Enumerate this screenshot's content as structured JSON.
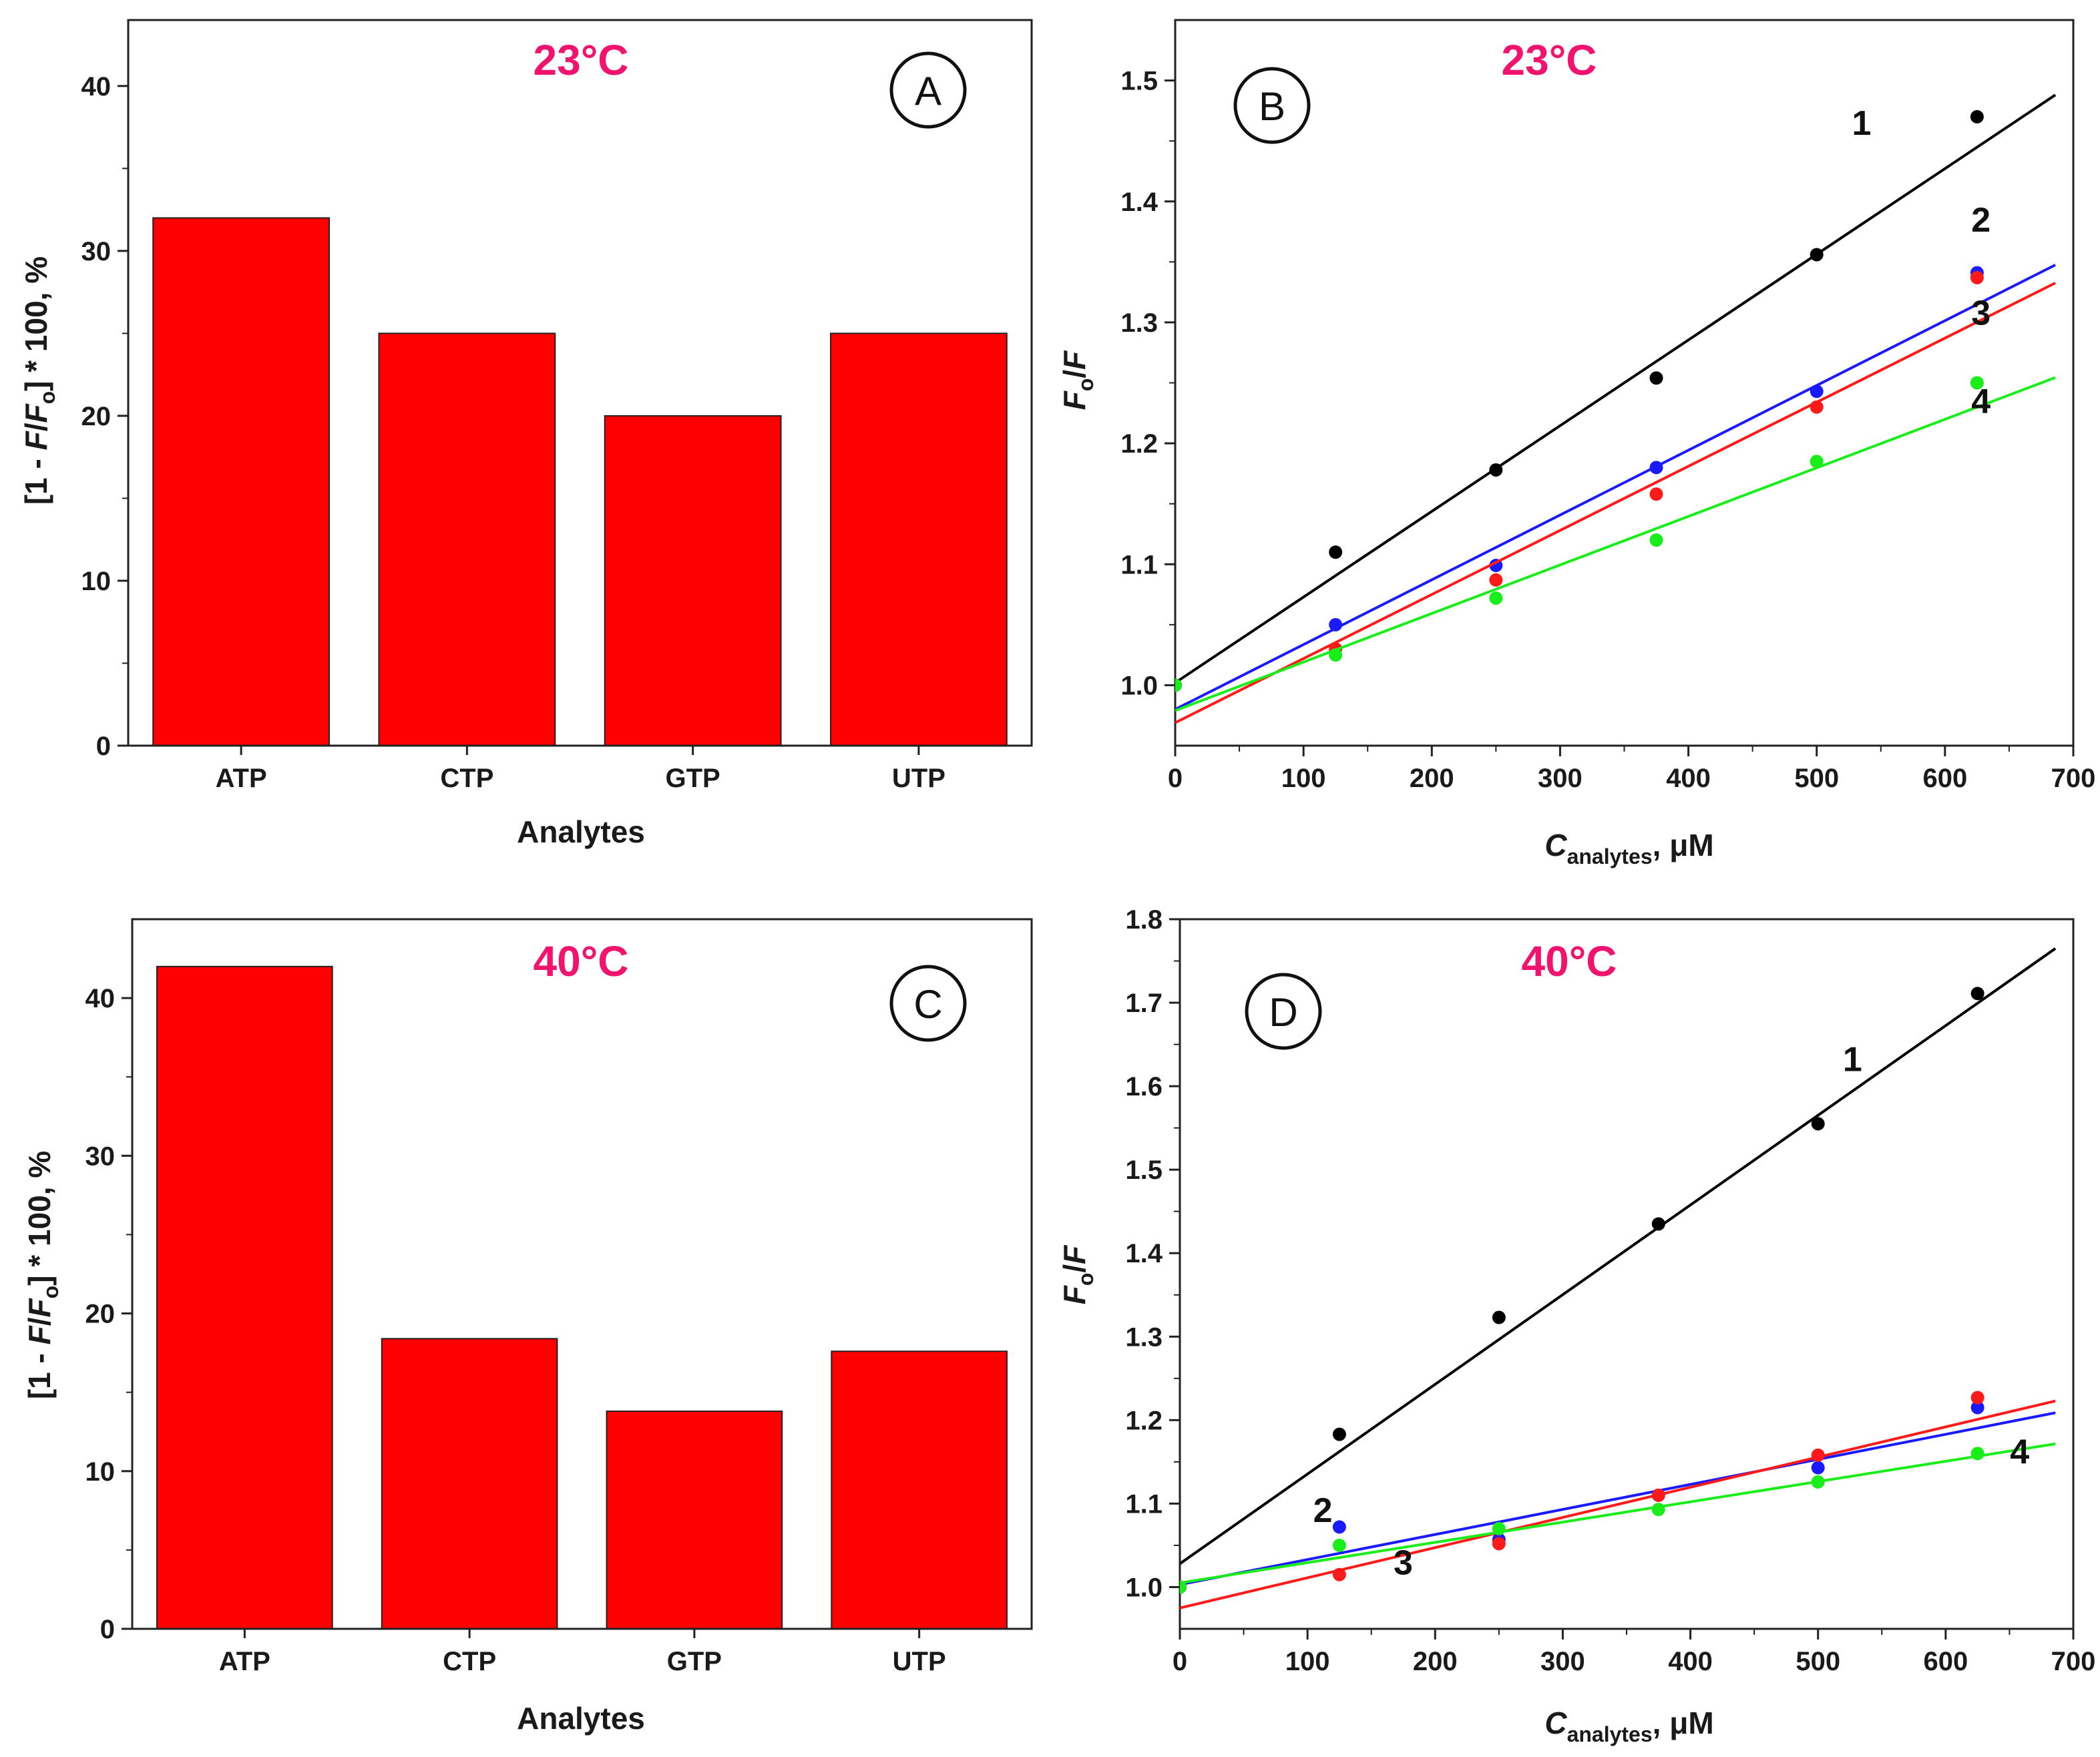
{
  "chart_data": [
    {
      "id": "A",
      "type": "bar",
      "panel_label": "A",
      "temperature": "23°C",
      "categories": [
        "ATP",
        "CTP",
        "GTP",
        "UTP"
      ],
      "values": [
        32,
        25,
        20,
        25
      ],
      "xlabel": "Analytes",
      "ylabel": {
        "pre": "[1 - ",
        "f": "F",
        "slash": "/",
        "f0": "F",
        "sub": "o",
        "post": "] * 100, %"
      },
      "ylim": [
        0,
        44
      ],
      "yticks": [
        0,
        10,
        20,
        30,
        40
      ],
      "bar_color": "#ff0000"
    },
    {
      "id": "B",
      "type": "scatter",
      "panel_label": "B",
      "temperature": "23°C",
      "xlabel": {
        "c": "C",
        "sub": "analytes",
        "unit": ", μM"
      },
      "ylabel": {
        "f0": "F",
        "sub": "o",
        "slash": "/",
        "f": "F"
      },
      "xlim": [
        0,
        700
      ],
      "ylim": [
        0.95,
        1.55
      ],
      "xticks": [
        0,
        100,
        200,
        300,
        400,
        500,
        600,
        700
      ],
      "yticks": [
        "1.0",
        "1.1",
        "1.2",
        "1.3",
        "1.4",
        "1.5"
      ],
      "series": [
        {
          "name": "1",
          "color": "#000000",
          "x": [
            0,
            125,
            250,
            375,
            500,
            625
          ],
          "y": [
            1.0,
            1.11,
            1.178,
            1.254,
            1.356,
            1.47
          ],
          "fit": [
            1.002,
            1.498
          ],
          "label_pos": [
            535,
            1.455
          ]
        },
        {
          "name": "2",
          "color": "#1a1aff",
          "x": [
            0,
            125,
            250,
            375,
            500,
            625
          ],
          "y": [
            1.0,
            1.05,
            1.099,
            1.18,
            1.243,
            1.341
          ],
          "fit": [
            0.98,
            1.355
          ],
          "label_pos": [
            628,
            1.375
          ]
        },
        {
          "name": "3",
          "color": "#ff1a1a",
          "x": [
            0,
            125,
            250,
            375,
            500,
            625
          ],
          "y": [
            1.0,
            1.03,
            1.087,
            1.158,
            1.23,
            1.337
          ],
          "fit": [
            0.969,
            1.34
          ],
          "label_pos": [
            628,
            1.298
          ]
        },
        {
          "name": "4",
          "color": "#1aee1a",
          "x": [
            0,
            125,
            250,
            375,
            500,
            625
          ],
          "y": [
            1.0,
            1.025,
            1.072,
            1.12,
            1.185,
            1.25
          ],
          "fit": [
            0.979,
            1.26
          ],
          "label_pos": [
            628,
            1.225
          ]
        }
      ]
    },
    {
      "id": "C",
      "type": "bar",
      "panel_label": "C",
      "temperature": "40°C",
      "categories": [
        "ATP",
        "CTP",
        "GTP",
        "UTP"
      ],
      "values": [
        42,
        18.4,
        13.8,
        17.6
      ],
      "xlabel": "Analytes",
      "ylabel": {
        "pre": "[1 - ",
        "f": "F",
        "slash": "/",
        "f0": "F",
        "sub": "o",
        "post": "] * 100, %"
      },
      "ylim": [
        0,
        45
      ],
      "yticks": [
        0,
        10,
        20,
        30,
        40
      ],
      "bar_color": "#ff0000"
    },
    {
      "id": "D",
      "type": "scatter",
      "panel_label": "D",
      "temperature": "40°C",
      "xlabel": {
        "c": "C",
        "sub": "analytes",
        "unit": ", μM"
      },
      "ylabel": {
        "f0": "F",
        "sub": "o",
        "slash": "/",
        "f": "F"
      },
      "xlim": [
        0,
        700
      ],
      "ylim": [
        0.95,
        1.8
      ],
      "xticks": [
        0,
        100,
        200,
        300,
        400,
        500,
        600,
        700
      ],
      "yticks": [
        "1.0",
        "1.1",
        "1.2",
        "1.3",
        "1.4",
        "1.5",
        "1.6",
        "1.7",
        "1.8"
      ],
      "series": [
        {
          "name": "1",
          "color": "#000000",
          "x": [
            0,
            125,
            250,
            375,
            500,
            625
          ],
          "y": [
            1.0,
            1.183,
            1.323,
            1.435,
            1.555,
            1.711
          ],
          "fit": [
            1.028,
            1.78
          ],
          "label_pos": [
            527,
            1.618
          ]
        },
        {
          "name": "2",
          "color": "#1a1aff",
          "x": [
            0,
            125,
            250,
            375,
            500,
            625
          ],
          "y": [
            1.0,
            1.072,
            1.057,
            1.11,
            1.143,
            1.215
          ],
          "fit": [
            1.003,
            1.213
          ],
          "label_pos": [
            112,
            1.078
          ]
        },
        {
          "name": "3",
          "color": "#ff1a1a",
          "x": [
            0,
            125,
            250,
            375,
            500,
            625
          ],
          "y": [
            1.0,
            1.015,
            1.052,
            1.11,
            1.158,
            1.227
          ],
          "fit": [
            0.975,
            1.228
          ],
          "label_pos": [
            175,
            1.015
          ]
        },
        {
          "name": "4",
          "color": "#1aee1a",
          "x": [
            0,
            125,
            250,
            375,
            500,
            625
          ],
          "y": [
            1.0,
            1.05,
            1.07,
            1.093,
            1.126,
            1.16
          ],
          "fit": [
            1.005,
            1.175
          ],
          "label_pos": [
            658,
            1.148
          ]
        }
      ]
    }
  ]
}
